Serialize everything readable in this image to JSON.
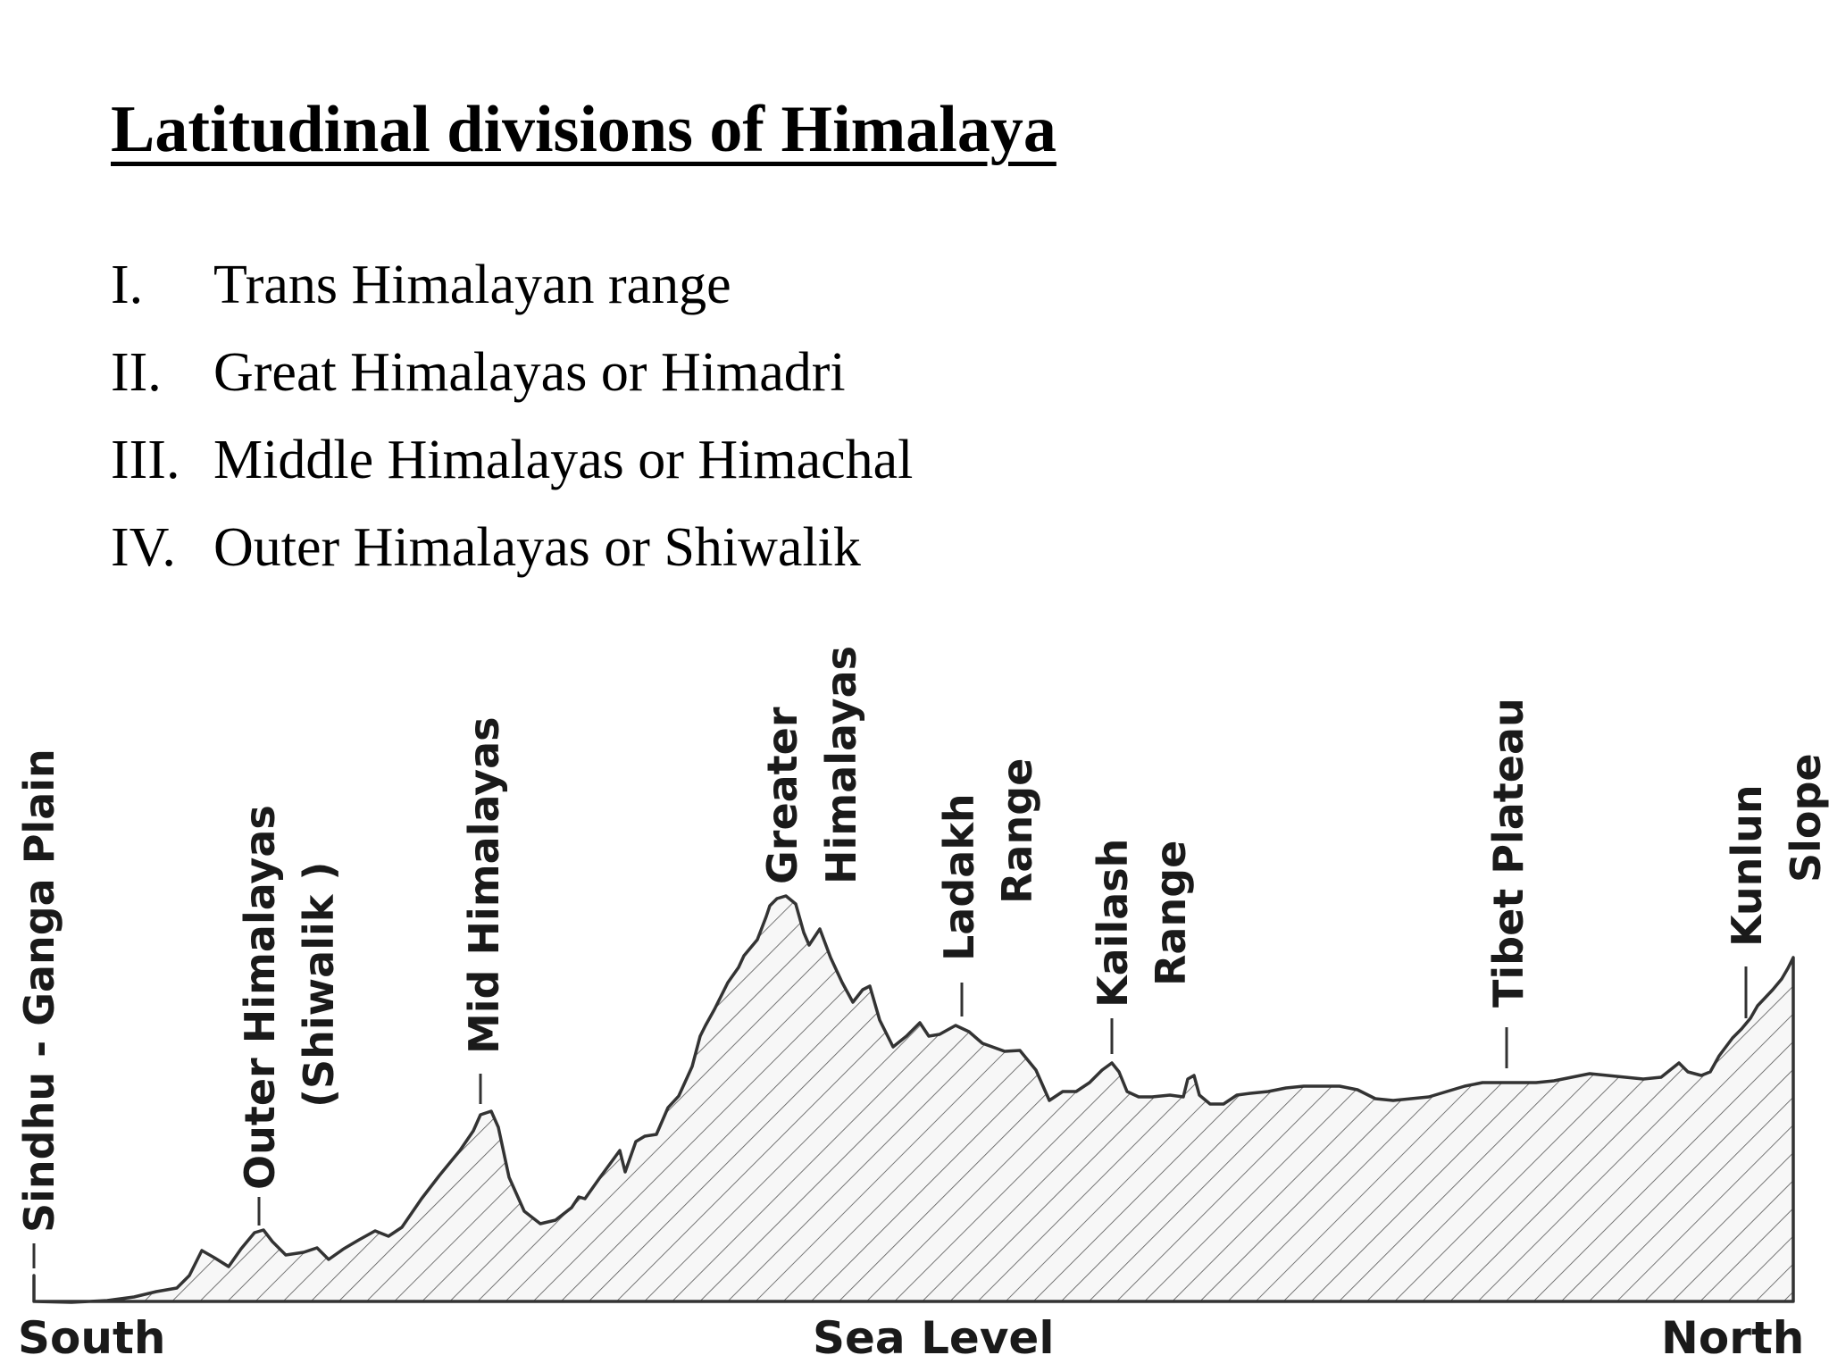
{
  "title": "Latitudinal divisions of Himalaya",
  "divisions": [
    {
      "numeral": "I.",
      "name": "Trans Himalayan range"
    },
    {
      "numeral": "II.",
      "name": "Great Himalayas or Himadri"
    },
    {
      "numeral": "III.",
      "name": "Middle Himalayas or Himachal"
    },
    {
      "numeral": "IV.",
      "name": "Outer Himalayas or Shiwalik"
    }
  ],
  "profile": {
    "labels": {
      "sindhu": "Sindhu - Ganga Plain",
      "outer_1": "Outer Himalayas",
      "outer_2": "(Shiwalik )",
      "mid": "Mid Himalayas",
      "greater_1": "Greater",
      "greater_2": "Himalayas",
      "ladakh_1": "Ladakh",
      "ladakh_2": "Range",
      "kailash_1": "Kailash",
      "kailash_2": "Range",
      "tibet": "Tibet Plateau",
      "kunlun_1": "Kunlun",
      "kunlun_2": "Slope"
    },
    "axis": {
      "left": "South",
      "center": "Sea Level",
      "right": "North"
    },
    "colors": {
      "outline": "#333333",
      "fill": "#f7f7f7",
      "hatch": "#555555"
    }
  }
}
